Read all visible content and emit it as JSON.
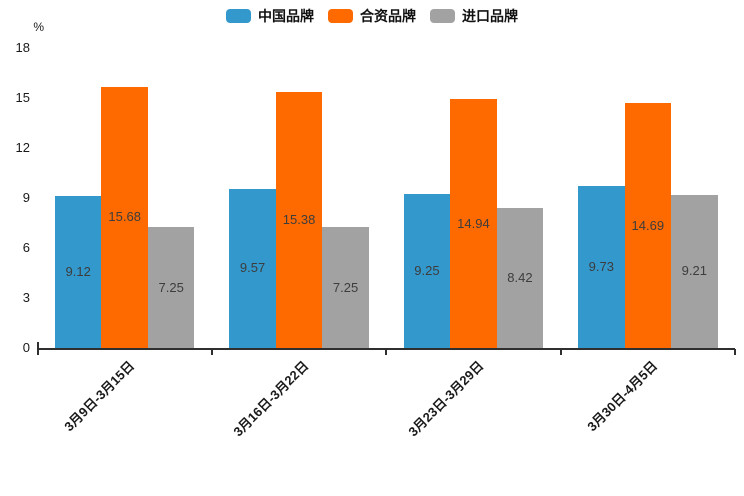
{
  "chart_data": {
    "type": "bar",
    "unit_label": "%",
    "categories": [
      "3月9日-3月15日",
      "3月16日-3月22日",
      "3月23日-3月29日",
      "3月30日-4月5日"
    ],
    "series": [
      {
        "name": "中国品牌",
        "color": "#3398cc",
        "values": [
          9.12,
          9.57,
          9.25,
          9.73
        ]
      },
      {
        "name": "合资品牌",
        "color": "#ff6a00",
        "values": [
          15.68,
          15.38,
          14.94,
          14.69
        ]
      },
      {
        "name": "进口品牌",
        "color": "#a2a2a2",
        "values": [
          7.25,
          7.25,
          8.42,
          9.21
        ]
      }
    ],
    "ylim": [
      0,
      18
    ],
    "yticks": [
      0,
      3,
      6,
      9,
      12,
      15,
      18
    ],
    "grid": false,
    "legend_position": "top-center",
    "value_labels": "inside-center"
  }
}
